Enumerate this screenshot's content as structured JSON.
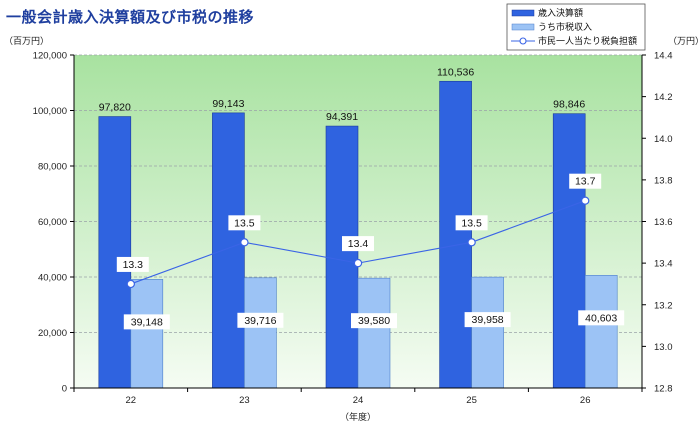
{
  "chart_data": {
    "type": "bar",
    "title": "一般会計歳入決算額及び市税の推移",
    "xlabel": "（年度）",
    "ylabel_left": "（百万円）",
    "ylabel_right": "（万円）",
    "categories": [
      "22",
      "23",
      "24",
      "25",
      "26"
    ],
    "ylim_left": [
      0,
      120000
    ],
    "ylim_right": [
      12.8,
      14.4
    ],
    "y_ticks_left": [
      "0",
      "20,000",
      "40,000",
      "60,000",
      "80,000",
      "100,000",
      "120,000"
    ],
    "y_ticks_right": [
      "12.8",
      "13.0",
      "13.2",
      "13.4",
      "13.6",
      "13.8",
      "14.0",
      "14.2",
      "14.4"
    ],
    "legend_position": "top-right",
    "series": [
      {
        "name": "歳入決算額",
        "type": "bar",
        "color": "#2f63e0",
        "values": [
          97820,
          99143,
          94391,
          110536,
          98846
        ],
        "labels": [
          "97,820",
          "99,143",
          "94,391",
          "110,536",
          "98,846"
        ]
      },
      {
        "name": "うち市税収入",
        "type": "bar",
        "color": "#9cc3f5",
        "values": [
          39148,
          39716,
          39580,
          39958,
          40603
        ],
        "labels": [
          "39,148",
          "39,716",
          "39,580",
          "39,958",
          "40,603"
        ]
      },
      {
        "name": "市民一人当たり税負担額",
        "type": "line",
        "axis": "right",
        "color": "#3a64e6",
        "values": [
          13.3,
          13.5,
          13.4,
          13.5,
          13.7
        ],
        "labels": [
          "13.3",
          "13.5",
          "13.4",
          "13.5",
          "13.7"
        ]
      }
    ],
    "colors": {
      "plot_bg_top": "#a8e2a0",
      "plot_bg_bottom": "#f5fcf3",
      "grid": "#9aa2a8",
      "title": "#1f3f9f"
    }
  }
}
